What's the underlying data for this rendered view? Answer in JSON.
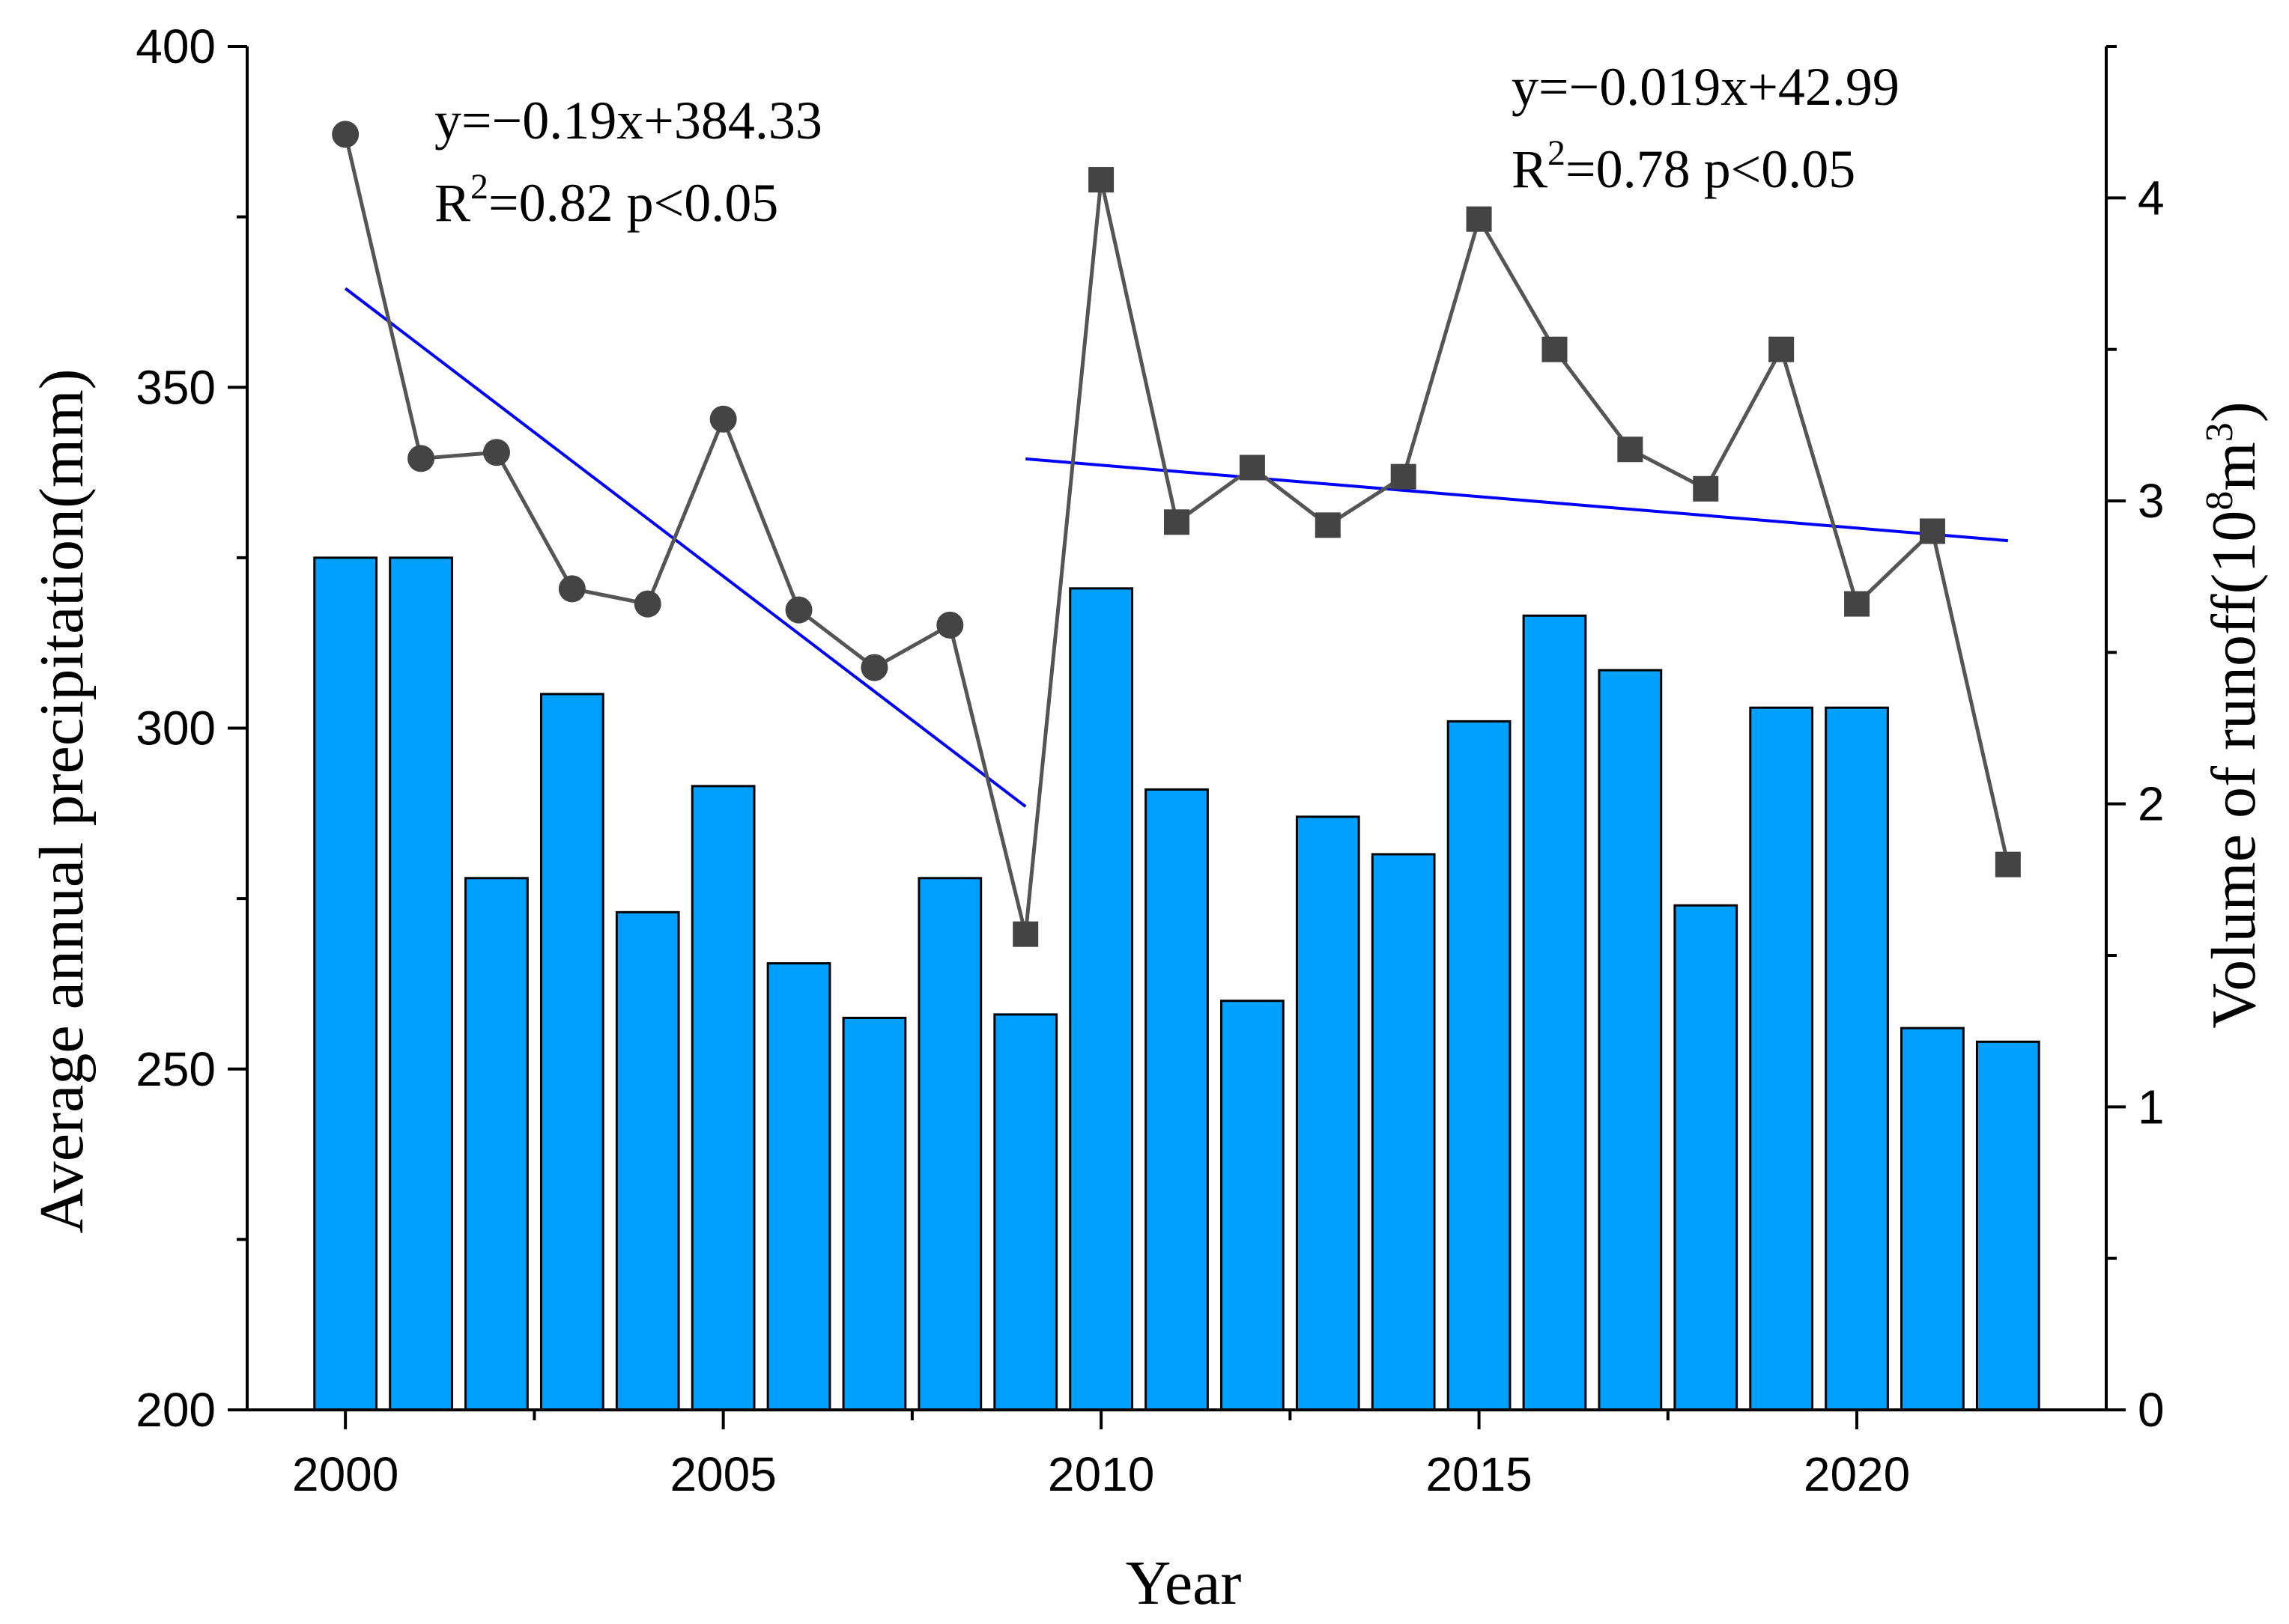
{
  "chart_data": {
    "type": "bar",
    "xlabel": "Year",
    "ylabel": "Average annual precipitation(mm)",
    "ylabel_right_parts": {
      "main": "Volume of runoff(10",
      "sup1": "8",
      "mid": "m",
      "sup2": "3",
      "end": ")"
    },
    "ylim": [
      200,
      400
    ],
    "y2lim": [
      0,
      4.5
    ],
    "xlim": [
      1998.7,
      2023.3
    ],
    "x_ticks": [
      "2000",
      "2005",
      "2010",
      "2015",
      "2020"
    ],
    "y_ticks": [
      "200",
      "250",
      "300",
      "350",
      "400"
    ],
    "y2_ticks": [
      "0",
      "1",
      "2",
      "3",
      "4"
    ],
    "categories": [
      "2000",
      "2001",
      "2002",
      "2003",
      "2004",
      "2005",
      "2006",
      "2007",
      "2008",
      "2009",
      "2010",
      "2011",
      "2012",
      "2013",
      "2014",
      "2015",
      "2016",
      "2017",
      "2018",
      "2019",
      "2020",
      "2021",
      "2022"
    ],
    "bars": {
      "axis": "left",
      "color": "#00a0ff",
      "values": [
        325,
        325,
        278,
        305,
        273,
        291.5,
        265.5,
        257.5,
        278,
        258,
        320.5,
        291,
        260,
        287,
        281.5,
        301,
        316.5,
        308.5,
        274,
        303,
        303,
        256,
        254
      ]
    },
    "line": {
      "axis": "right",
      "color": "#555555",
      "values": [
        4.21,
        3.14,
        3.16,
        2.71,
        2.66,
        3.27,
        2.64,
        2.45,
        2.59,
        1.57,
        4.06,
        2.93,
        3.11,
        2.92,
        3.08,
        3.93,
        3.5,
        3.17,
        3.04,
        3.5,
        2.66,
        2.9,
        1.8
      ],
      "markers_circle_years": [
        "2000",
        "2001",
        "2002",
        "2003",
        "2004",
        "2005",
        "2006",
        "2007",
        "2008"
      ],
      "markers_square_years": [
        "2009",
        "2010",
        "2011",
        "2012",
        "2013",
        "2014",
        "2015",
        "2016",
        "2017",
        "2018",
        "2019",
        "2020",
        "2021",
        "2022"
      ]
    },
    "trendlines": [
      {
        "color": "#0000ff",
        "axis": "left",
        "start": {
          "x": 2000,
          "y": 364.5
        },
        "end": {
          "x": 2009,
          "y": 288.5
        }
      },
      {
        "color": "#0000ff",
        "axis": "left",
        "start": {
          "x": 2009,
          "y": 339.5
        },
        "end": {
          "x": 2022,
          "y": 327.5
        }
      }
    ],
    "annotations": [
      {
        "line1": "y=−0.19x+384.33",
        "r_prefix": "R",
        "r_sup": "2",
        "r_rest": "=0.82 p<0.05"
      },
      {
        "line1": "y=−0.019x+42.99",
        "r_prefix": "R",
        "r_sup": "2",
        "r_rest": "=0.78 p<0.05"
      }
    ]
  }
}
